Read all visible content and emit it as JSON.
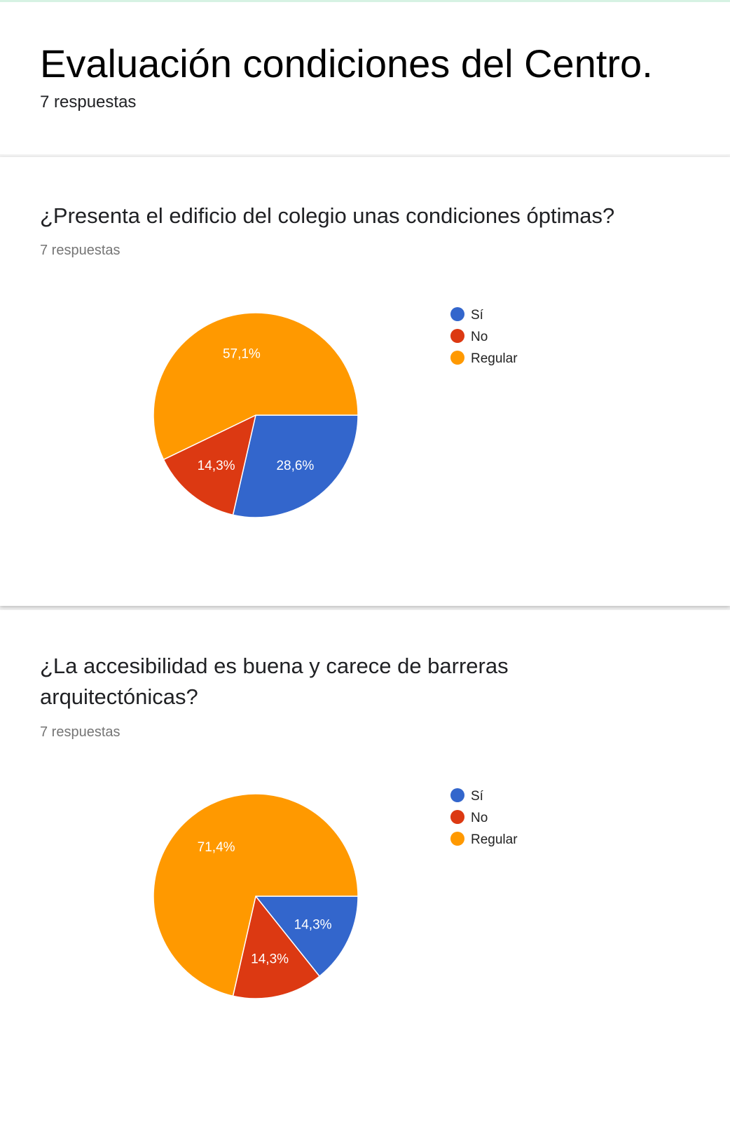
{
  "form": {
    "title": "Evaluación condiciones del Centro.",
    "responses": "7 respuestas"
  },
  "questions": [
    {
      "title": "¿Presenta el edificio del colegio unas condiciones óptimas?",
      "responses": "7 respuestas"
    },
    {
      "title": "¿La accesibilidad es buena y carece de barreras arquitectónicas?",
      "responses": "7 respuestas"
    }
  ],
  "chart_data": [
    {
      "type": "pie",
      "title": "¿Presenta el edificio del colegio unas condiciones óptimas?",
      "categories": [
        "Sí",
        "No",
        "Regular"
      ],
      "values": [
        2,
        1,
        4
      ],
      "percent_labels": [
        "28,6%",
        "14,3%",
        "57,1%"
      ],
      "colors": [
        "#3366cc",
        "#dc3912",
        "#ff9900"
      ],
      "legend_position": "right"
    },
    {
      "type": "pie",
      "title": "¿La accesibilidad es buena y carece de barreras arquitectónicas?",
      "categories": [
        "Sí",
        "No",
        "Regular"
      ],
      "values": [
        1,
        1,
        5
      ],
      "percent_labels": [
        "14,3%",
        "14,3%",
        "71,4%"
      ],
      "colors": [
        "#3366cc",
        "#dc3912",
        "#ff9900"
      ],
      "legend_position": "right"
    }
  ]
}
